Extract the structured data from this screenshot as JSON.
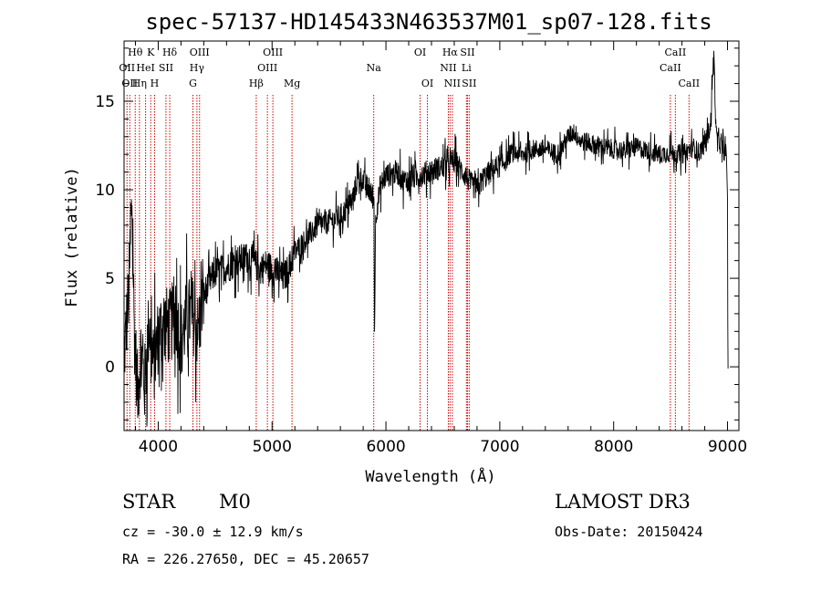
{
  "chart_data": {
    "type": "line",
    "title": "spec-57137-HD145433N463537M01_sp07-128.fits",
    "xlabel": "Wavelength (Å)",
    "ylabel": "Flux (relative)",
    "xlim": [
      3700,
      9100
    ],
    "ylim": [
      -3.6,
      18.4
    ],
    "x_ticks": [
      4000,
      5000,
      6000,
      7000,
      8000,
      9000
    ],
    "y_ticks": [
      0,
      5,
      10,
      15
    ],
    "grid": false,
    "legend": "none",
    "series": [
      {
        "name": "flux",
        "anchors": [
          [
            3700,
            0.5
          ],
          [
            3740,
            4.0
          ],
          [
            3770,
            9.5
          ],
          [
            3790,
            2.0
          ],
          [
            3820,
            -1.5
          ],
          [
            3850,
            1.0
          ],
          [
            3880,
            -1.0
          ],
          [
            3920,
            2.5
          ],
          [
            3960,
            0.0
          ],
          [
            4000,
            1.8
          ],
          [
            4050,
            2.5
          ],
          [
            4100,
            2.2
          ],
          [
            4150,
            3.0
          ],
          [
            4200,
            1.5
          ],
          [
            4250,
            2.8
          ],
          [
            4300,
            3.0
          ],
          [
            4350,
            2.0
          ],
          [
            4400,
            4.0
          ],
          [
            4450,
            4.8
          ],
          [
            4500,
            5.3
          ],
          [
            4600,
            5.6
          ],
          [
            4700,
            6.0
          ],
          [
            4800,
            6.2
          ],
          [
            4850,
            5.8
          ],
          [
            4900,
            5.5
          ],
          [
            4950,
            5.8
          ],
          [
            5000,
            5.5
          ],
          [
            5050,
            5.3
          ],
          [
            5100,
            5.0
          ],
          [
            5150,
            5.6
          ],
          [
            5200,
            6.5
          ],
          [
            5300,
            7.2
          ],
          [
            5400,
            8.0
          ],
          [
            5500,
            8.2
          ],
          [
            5600,
            8.5
          ],
          [
            5700,
            9.3
          ],
          [
            5760,
            10.8
          ],
          [
            5800,
            10.5
          ],
          [
            5850,
            10.0
          ],
          [
            5895,
            9.4
          ],
          [
            5900,
            2.0
          ],
          [
            5910,
            8.5
          ],
          [
            5950,
            10.2
          ],
          [
            6000,
            10.8
          ],
          [
            6100,
            11.0
          ],
          [
            6150,
            10.5
          ],
          [
            6200,
            10.6
          ],
          [
            6300,
            10.8
          ],
          [
            6400,
            11.1
          ],
          [
            6500,
            11.3
          ],
          [
            6560,
            11.5
          ],
          [
            6600,
            11.7
          ],
          [
            6650,
            11.2
          ],
          [
            6700,
            10.8
          ],
          [
            6750,
            10.3
          ],
          [
            6800,
            10.0
          ],
          [
            6850,
            10.6
          ],
          [
            6900,
            10.9
          ],
          [
            7000,
            11.4
          ],
          [
            7050,
            11.6
          ],
          [
            7100,
            12.1
          ],
          [
            7200,
            12.0
          ],
          [
            7300,
            12.3
          ],
          [
            7400,
            12.3
          ],
          [
            7500,
            12.0
          ],
          [
            7550,
            12.4
          ],
          [
            7600,
            13.0
          ],
          [
            7650,
            13.3
          ],
          [
            7700,
            12.8
          ],
          [
            7800,
            12.6
          ],
          [
            7900,
            12.4
          ],
          [
            8000,
            12.3
          ],
          [
            8100,
            12.2
          ],
          [
            8200,
            12.4
          ],
          [
            8300,
            12.2
          ],
          [
            8400,
            12.0
          ],
          [
            8500,
            12.1
          ],
          [
            8600,
            12.0
          ],
          [
            8700,
            12.4
          ],
          [
            8750,
            12.1
          ],
          [
            8800,
            12.6
          ],
          [
            8850,
            13.6
          ],
          [
            8880,
            17.8
          ],
          [
            8900,
            13.0
          ],
          [
            8950,
            12.4
          ],
          [
            8990,
            12.0
          ],
          [
            9000,
            9.5
          ],
          [
            9002,
            2.5
          ],
          [
            9005,
            -0.1
          ]
        ]
      }
    ],
    "spectral_lines": [
      {
        "wl": 3726,
        "labels": [
          "OII"
        ],
        "row": 2
      },
      {
        "wl": 3750,
        "labels": [
          "OII"
        ],
        "row": 3
      },
      {
        "wl": 3798,
        "labels": [
          "Hθ"
        ],
        "row": 1
      },
      {
        "wl": 3835,
        "labels": [
          "Hη"
        ],
        "row": 3
      },
      {
        "wl": 3889,
        "labels": [
          "HeI"
        ],
        "row": 2
      },
      {
        "wl": 3934,
        "labels": [
          "K"
        ],
        "row": 1
      },
      {
        "wl": 3968,
        "labels": [
          "H"
        ],
        "row": 3
      },
      {
        "wl": 4068,
        "labels": [
          "SII"
        ],
        "row": 2
      },
      {
        "wl": 4101,
        "labels": [
          "Hδ"
        ],
        "row": 1
      },
      {
        "wl": 4305,
        "labels": [
          "G"
        ],
        "row": 3
      },
      {
        "wl": 4340,
        "labels": [
          "Hγ"
        ],
        "row": 2
      },
      {
        "wl": 4363,
        "labels": [
          "OIII"
        ],
        "row": 1
      },
      {
        "wl": 4861,
        "labels": [
          "Hβ"
        ],
        "row": 3
      },
      {
        "wl": 4959,
        "labels": [
          "OIII"
        ],
        "row": 2
      },
      {
        "wl": 5007,
        "labels": [
          "OIII"
        ],
        "row": 1
      },
      {
        "wl": 5175,
        "labels": [
          "Mg"
        ],
        "row": 3
      },
      {
        "wl": 5893,
        "labels": [
          "Na"
        ],
        "row": 2
      },
      {
        "wl": 6300,
        "labels": [
          "OI"
        ],
        "row": 1
      },
      {
        "wl": 6364,
        "labels": [
          "OI"
        ],
        "row": 3
      },
      {
        "wl": 6548,
        "labels": [
          "NII"
        ],
        "row": 2
      },
      {
        "wl": 6563,
        "labels": [
          "Hα"
        ],
        "row": 1
      },
      {
        "wl": 6583,
        "labels": [
          "NII"
        ],
        "row": 3
      },
      {
        "wl": 6707,
        "labels": [
          "Li"
        ],
        "row": 2
      },
      {
        "wl": 6716,
        "labels": [
          "SII"
        ],
        "row": 1
      },
      {
        "wl": 6731,
        "labels": [
          "SII"
        ],
        "row": 3
      },
      {
        "wl": 8498,
        "labels": [
          "CaII"
        ],
        "row": 2
      },
      {
        "wl": 8542,
        "labels": [
          "CaII"
        ],
        "row": 1
      },
      {
        "wl": 8662,
        "labels": [
          "CaII"
        ],
        "row": 3
      }
    ],
    "line_color": "#cc0000",
    "spectrum_color": "#000000"
  },
  "info": {
    "class_label": "STAR",
    "subclass_label": "M0",
    "survey_label": "LAMOST DR3",
    "redshift_label": "cz = -30.0 ± 12.9 km/s",
    "obs_date_label": "Obs-Date: 20150424",
    "coords_label": "RA = 226.27650, DEC =  45.20657"
  }
}
